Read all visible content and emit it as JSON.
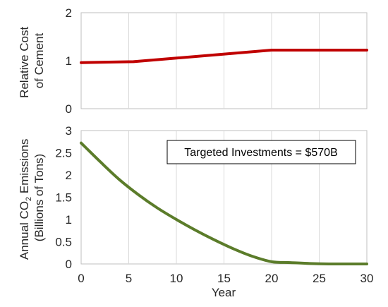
{
  "chart_data": [
    {
      "type": "line",
      "ylabel_lines": [
        "Relative Cost",
        "of Cement"
      ],
      "ylim": [
        0,
        2
      ],
      "yticks": [
        "0",
        "1",
        "2"
      ],
      "xlim": [
        0,
        30
      ],
      "grid": "vertical",
      "series": [
        {
          "x": [
            0,
            5.5,
            20,
            30
          ],
          "y": [
            0.96,
            0.98,
            1.22,
            1.22
          ],
          "color": "#c00000"
        }
      ]
    },
    {
      "type": "line",
      "ylabel_lines": [
        "Annual CO",
        "2",
        " Emissions",
        "(Billions of Tons)"
      ],
      "ylim": [
        0,
        3
      ],
      "yticks": [
        "0",
        "0.5",
        "1",
        "1.5",
        "2",
        "2.5",
        "3"
      ],
      "xlim": [
        0,
        30
      ],
      "xticks": [
        "0",
        "5",
        "10",
        "15",
        "20",
        "25",
        "30"
      ],
      "xlabel": "Year",
      "annotation": "Targeted Investments = $570B",
      "grid": "vertical",
      "series": [
        {
          "x": [
            0,
            2,
            4,
            6,
            8,
            10,
            12,
            14,
            16,
            18,
            20,
            22,
            24,
            26,
            28,
            30
          ],
          "y": [
            2.72,
            2.3,
            1.9,
            1.56,
            1.26,
            1.0,
            0.76,
            0.54,
            0.34,
            0.17,
            0.05,
            0.03,
            0.01,
            0.0,
            0.0,
            0.0
          ],
          "color": "#5b7c2a"
        }
      ]
    }
  ]
}
